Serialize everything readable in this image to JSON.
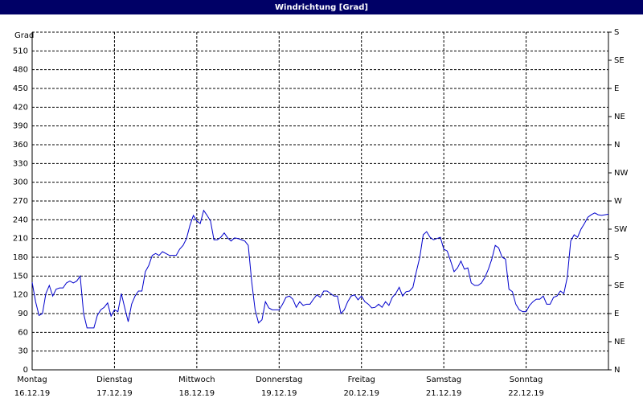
{
  "chart_data": {
    "type": "line",
    "title": "Windrichtung [Grad]",
    "y_label": "Grad",
    "xlim": [
      0,
      168
    ],
    "xticks": [
      {
        "value": 0,
        "label": [
          "Montag",
          "16.12.19"
        ]
      },
      {
        "value": 24,
        "label": [
          "Dienstag",
          "17.12.19"
        ]
      },
      {
        "value": 48,
        "label": [
          "Mittwoch",
          "18.12.19"
        ]
      },
      {
        "value": 72,
        "label": [
          "Donnerstag",
          "19.12.19"
        ]
      },
      {
        "value": 96,
        "label": [
          "Freitag",
          "20.12.19"
        ]
      },
      {
        "value": 120,
        "label": [
          "Samstag",
          "21.12.19"
        ]
      },
      {
        "value": 144,
        "label": [
          "Sonntag",
          "22.12.19"
        ]
      }
    ],
    "ylim": [
      0,
      540
    ],
    "yticks": [
      0,
      30,
      60,
      90,
      120,
      150,
      180,
      210,
      240,
      270,
      300,
      330,
      360,
      390,
      420,
      450,
      480,
      510
    ],
    "y2lim": [
      0,
      540
    ],
    "y2ticks": [
      {
        "value": 0,
        "label": "N"
      },
      {
        "value": 45,
        "label": "NE"
      },
      {
        "value": 90,
        "label": "E"
      },
      {
        "value": 135,
        "label": "SE"
      },
      {
        "value": 180,
        "label": "S"
      },
      {
        "value": 225,
        "label": "SW"
      },
      {
        "value": 270,
        "label": "W"
      },
      {
        "value": 315,
        "label": "NW"
      },
      {
        "value": 360,
        "label": "N"
      },
      {
        "value": 405,
        "label": "NE"
      },
      {
        "value": 450,
        "label": "E"
      },
      {
        "value": 495,
        "label": "SE"
      },
      {
        "value": 540,
        "label": "S"
      }
    ],
    "grid": true,
    "series": [
      {
        "color": "#0000cc",
        "x": [
          0,
          1,
          2,
          3,
          4,
          5,
          6,
          7,
          8,
          9,
          10,
          11,
          12,
          13,
          14,
          15,
          16,
          17,
          18,
          19,
          20,
          21,
          22,
          23,
          24,
          25,
          26,
          27,
          28,
          29,
          30,
          31,
          32,
          33,
          34,
          35,
          36,
          37,
          38,
          39,
          40,
          41,
          42,
          43,
          44,
          45,
          46,
          47,
          48,
          49,
          50,
          51,
          52,
          53,
          54,
          55,
          56,
          57,
          58,
          59,
          60,
          61,
          62,
          63,
          64,
          65,
          66,
          67,
          68,
          69,
          70,
          71,
          72,
          73,
          74,
          75,
          76,
          77,
          78,
          79,
          80,
          81,
          82,
          83,
          84,
          85,
          86,
          87,
          88,
          89,
          90,
          91,
          92,
          93,
          94,
          95,
          96,
          97,
          98,
          99,
          100,
          101,
          102,
          103,
          104,
          105,
          106,
          107,
          108,
          109,
          110,
          111,
          112,
          113,
          114,
          115,
          116,
          117,
          118,
          119,
          120,
          121,
          122,
          123,
          124,
          125,
          126,
          127,
          128,
          129,
          130,
          131,
          132,
          133,
          134,
          135,
          136,
          137,
          138,
          139,
          140,
          141,
          142,
          143,
          144,
          145,
          146,
          147,
          148,
          149,
          150,
          151,
          152,
          153,
          154,
          155,
          156,
          157,
          158,
          159,
          160,
          161,
          162,
          163,
          164,
          165,
          166,
          167,
          168
        ],
        "values": [
          140,
          109,
          87,
          90,
          122,
          135,
          118,
          129,
          131,
          131,
          139,
          142,
          139,
          142,
          150,
          90,
          67,
          67,
          67,
          87,
          96,
          100,
          107,
          86,
          96,
          93,
          122,
          99,
          77,
          105,
          118,
          126,
          126,
          157,
          167,
          183,
          186,
          183,
          189,
          186,
          183,
          183,
          183,
          193,
          199,
          210,
          231,
          247,
          238,
          234,
          255,
          247,
          238,
          208,
          208,
          212,
          219,
          211,
          206,
          211,
          210,
          208,
          206,
          199,
          141,
          96,
          75,
          80,
          109,
          99,
          96,
          96,
          96,
          105,
          116,
          118,
          113,
          100,
          109,
          103,
          105,
          105,
          113,
          120,
          116,
          126,
          126,
          122,
          118,
          118,
          90,
          96,
          109,
          118,
          120,
          112,
          118,
          109,
          105,
          99,
          100,
          105,
          100,
          109,
          103,
          116,
          122,
          132,
          118,
          125,
          126,
          132,
          157,
          180,
          216,
          221,
          212,
          208,
          210,
          212,
          193,
          190,
          174,
          157,
          163,
          174,
          161,
          163,
          139,
          135,
          135,
          139,
          148,
          161,
          177,
          199,
          195,
          180,
          177,
          129,
          125,
          105,
          96,
          93,
          93,
          103,
          109,
          113,
          113,
          118,
          105,
          105,
          116,
          118,
          126,
          122,
          148,
          206,
          216,
          212,
          225,
          234,
          244,
          248,
          251,
          248,
          247,
          248,
          249
        ]
      }
    ]
  }
}
